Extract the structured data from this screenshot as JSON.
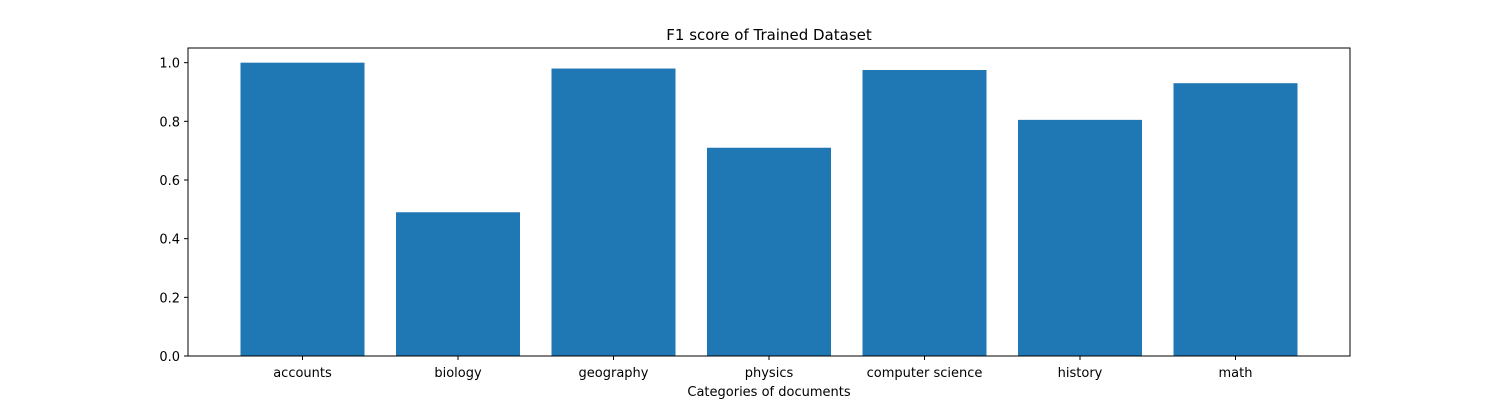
{
  "chart_data": {
    "type": "bar",
    "title": "F1 score of Trained Dataset",
    "xlabel": "Categories of documents",
    "ylabel": "",
    "categories": [
      "accounts",
      "biology",
      "geography",
      "physics",
      "computer science",
      "history",
      "math"
    ],
    "values": [
      1.0,
      0.49,
      0.98,
      0.71,
      0.975,
      0.805,
      0.93
    ],
    "ylim": [
      0,
      1.05
    ],
    "yticks": [
      "0.0",
      "0.2",
      "0.4",
      "0.6",
      "0.8",
      "1.0"
    ],
    "bar_color": "#1f77b4",
    "grid": false
  }
}
